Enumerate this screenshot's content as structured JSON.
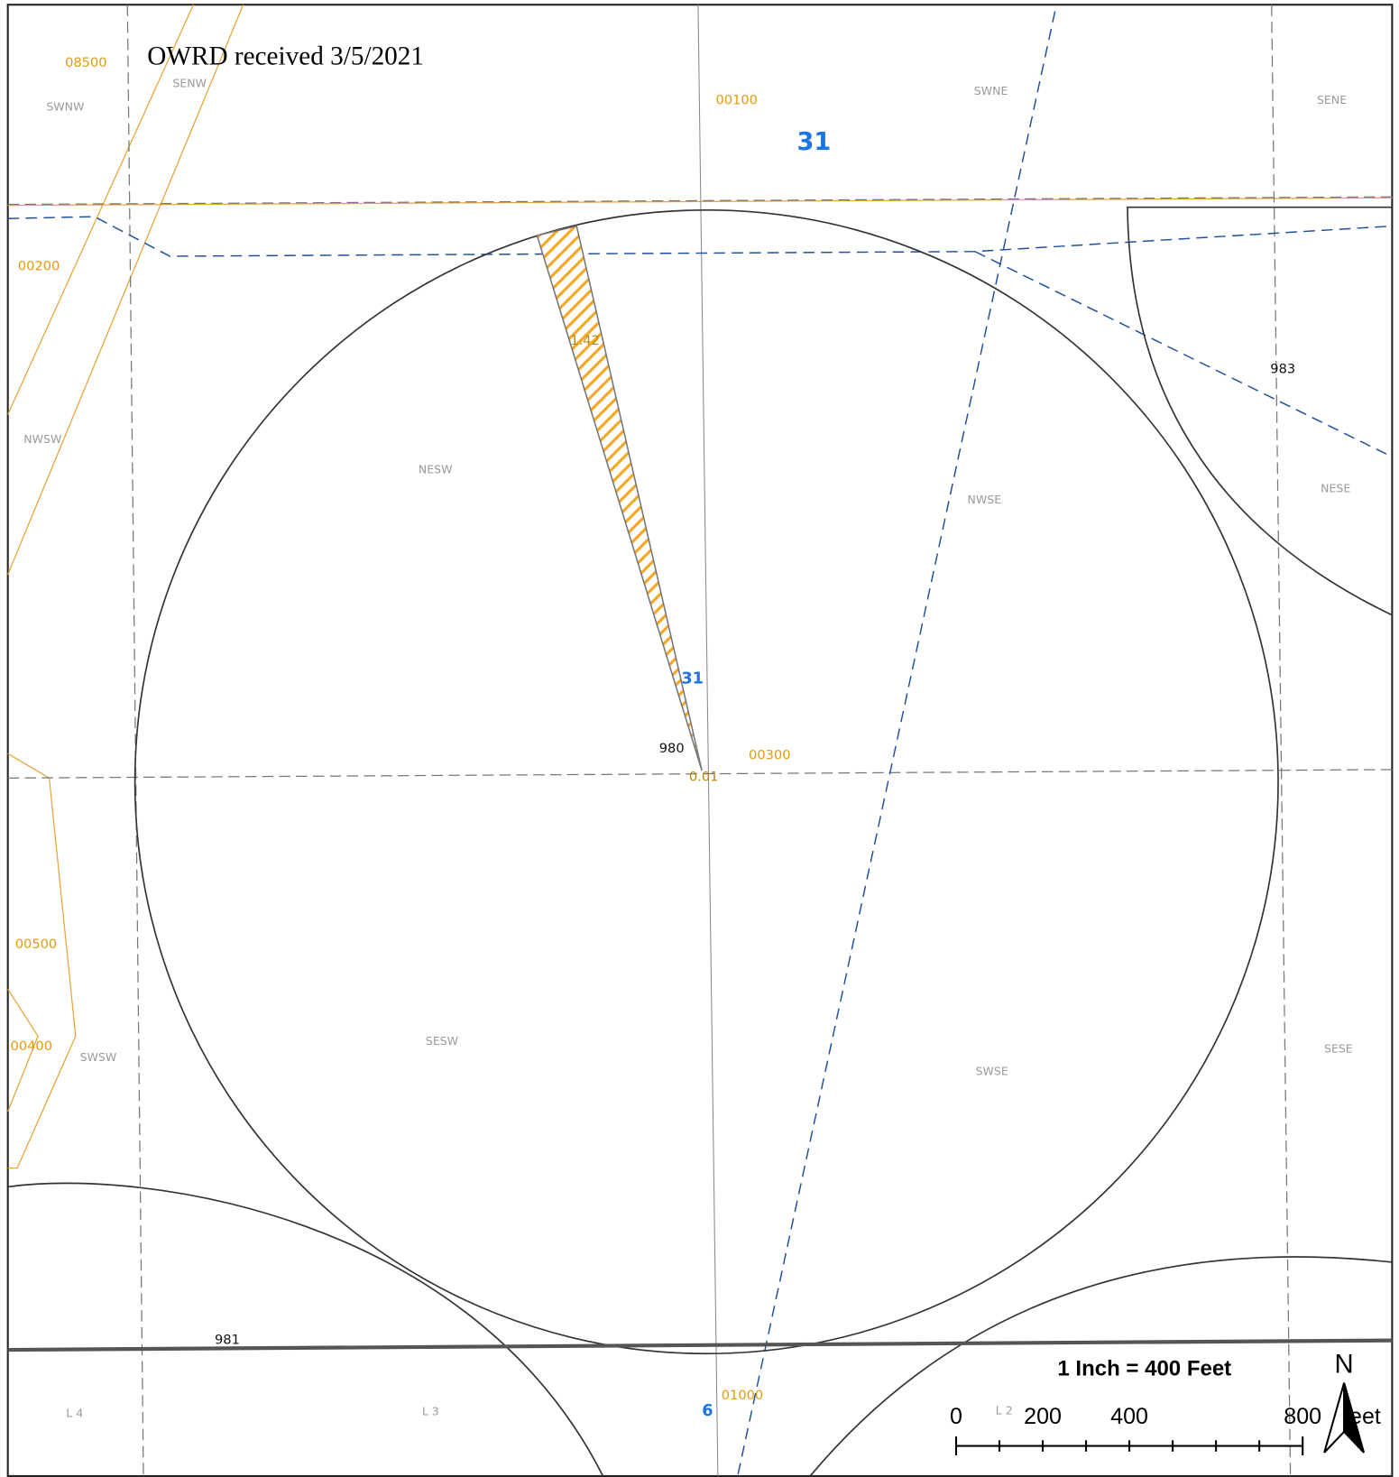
{
  "title": "OWRD received 3/5/2021",
  "taxlots": [
    "08500",
    "00100",
    "00200",
    "00300",
    "00500",
    "00400",
    "01000"
  ],
  "quarters": [
    "SENW",
    "SWNW",
    "SWNE",
    "SENE",
    "NWSW",
    "NESW",
    "NWSE",
    "NESE",
    "SESW",
    "SWSW",
    "SWSE",
    "SESE",
    "L 4",
    "L 3",
    "L 2"
  ],
  "sections": [
    "31",
    "31",
    "6"
  ],
  "references": [
    "980",
    "983",
    "981"
  ],
  "acreage": [
    "1.42",
    "0.01"
  ],
  "scale": {
    "text": "1 Inch = 400 Feet",
    "ticks": [
      "0",
      "200",
      "400",
      "800"
    ],
    "unit": "Feet"
  },
  "north": "N"
}
